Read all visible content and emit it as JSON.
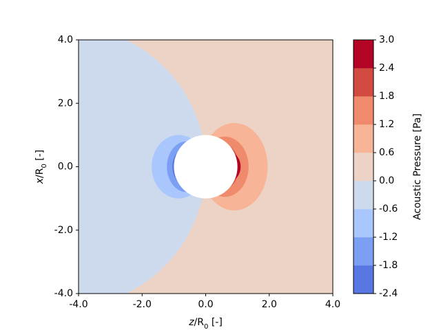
{
  "chart_data": {
    "type": "contour",
    "xlabel": [
      "z",
      "/R",
      "0",
      " [-]"
    ],
    "ylabel": [
      "x",
      "/R",
      "0",
      " [-]"
    ],
    "xlim": [
      -4,
      4
    ],
    "ylim": [
      -4,
      4
    ],
    "xticks": [
      {
        "value": -4,
        "label": "-4.0"
      },
      {
        "value": -2,
        "label": "-2.0"
      },
      {
        "value": 0,
        "label": "0.0"
      },
      {
        "value": 2,
        "label": "2.0"
      },
      {
        "value": 4,
        "label": "4.0"
      }
    ],
    "yticks": [
      {
        "value": -4,
        "label": "-4.0"
      },
      {
        "value": -2,
        "label": "-2.0"
      },
      {
        "value": 0,
        "label": "0.0"
      },
      {
        "value": 2,
        "label": "2.0"
      },
      {
        "value": 4,
        "label": "4.0"
      }
    ],
    "colorbar_label": "Acoustic Pressure [Pa]",
    "levels": [
      -2.4,
      -1.8,
      -1.2,
      -0.6,
      {
        "value": 0,
        "label": "0.0"
      },
      0.6,
      1.2,
      1.8,
      2.4,
      {
        "value": 3,
        "label": "3.0"
      }
    ],
    "colors": [
      "#5977e3",
      "#7b9ff2",
      "#aac7fd",
      "#cdd9ec",
      "#ecd3c5",
      "#f7b497",
      "#f08a6c",
      "#d24b40",
      "#b40426"
    ]
  }
}
